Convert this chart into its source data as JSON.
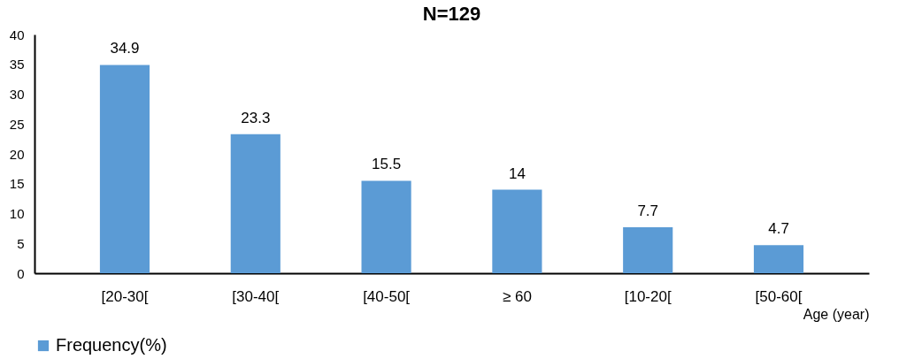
{
  "chart_data": {
    "type": "bar",
    "title": "N=129",
    "xlabel": "Age (year)",
    "categories": [
      "[20-30[",
      "[30-40[",
      "[40-50[",
      "≥ 60",
      "[10-20[",
      "[50-60["
    ],
    "series": [
      {
        "name": "Frequency(%)",
        "color": "#5b9bd5",
        "values": [
          34.9,
          23.3,
          15.5,
          14,
          7.7,
          4.7
        ]
      }
    ],
    "ylim": [
      0,
      40
    ],
    "yticks": [
      0,
      5,
      10,
      15,
      20,
      25,
      30,
      35,
      40
    ],
    "data_labels": true,
    "grid": false,
    "legend": "bottom"
  }
}
